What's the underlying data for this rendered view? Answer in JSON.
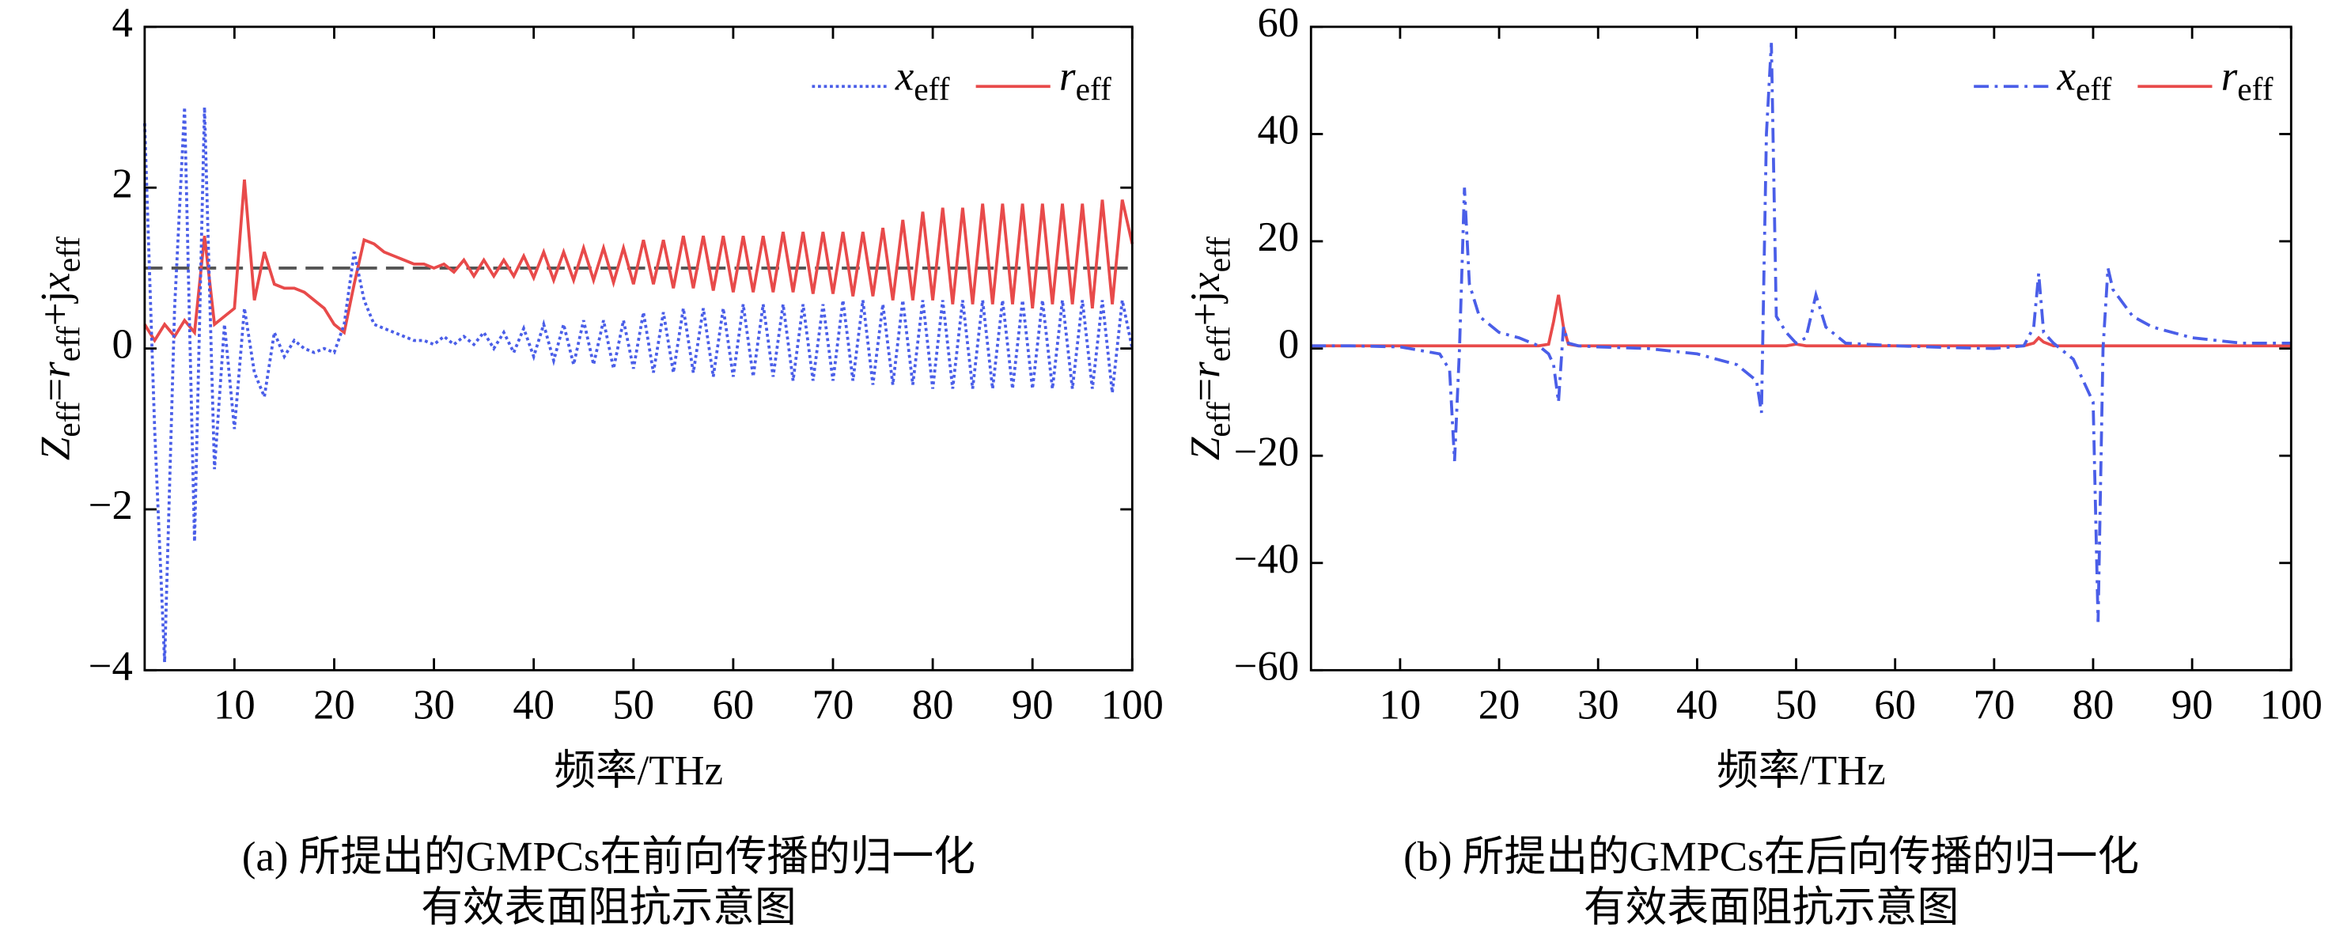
{
  "chart_data": [
    {
      "type": "line",
      "ylabel": [
        "Z",
        "eff",
        "=",
        "r",
        "eff",
        "+j",
        "x",
        "eff"
      ],
      "xlabel": "频率/THz",
      "caption": [
        "(a) 所提出的GMPCs在前向传播的归一化",
        "有效表面阻抗示意图"
      ],
      "xlim": [
        1,
        100
      ],
      "xticks": [
        10,
        20,
        30,
        40,
        50,
        60,
        70,
        80,
        90,
        100
      ],
      "ylim": [
        -4,
        4
      ],
      "yticks": [
        -4,
        -2,
        0,
        2,
        4
      ],
      "hline": 1,
      "x": [
        1,
        2,
        3,
        4,
        5,
        6,
        7,
        8,
        9,
        10,
        11,
        12,
        13,
        14,
        15,
        16,
        17,
        18,
        19,
        20,
        21,
        22,
        23,
        24,
        25,
        26,
        27,
        28,
        29,
        30,
        31,
        32,
        33,
        34,
        35,
        36,
        37,
        38,
        39,
        40,
        41,
        42,
        43,
        44,
        45,
        46,
        47,
        48,
        49,
        50,
        51,
        52,
        53,
        54,
        55,
        56,
        57,
        58,
        59,
        60,
        61,
        62,
        63,
        64,
        65,
        66,
        67,
        68,
        69,
        70,
        71,
        72,
        73,
        74,
        75,
        76,
        77,
        78,
        79,
        80,
        81,
        82,
        83,
        84,
        85,
        86,
        87,
        88,
        89,
        90,
        91,
        92,
        93,
        94,
        95,
        96,
        97,
        98,
        99,
        100
      ],
      "series": [
        {
          "name": [
            "x",
            "eff"
          ],
          "color": "#4a5ee8",
          "style": "dotted",
          "values": [
            2.8,
            -1,
            -3.9,
            0.5,
            3,
            -2.4,
            3,
            -1.5,
            0.3,
            -1,
            0.5,
            -0.3,
            -0.6,
            0.2,
            -0.1,
            0.1,
            0,
            -0.05,
            0,
            -0.05,
            0.3,
            1.2,
            0.6,
            0.3,
            0.25,
            0.2,
            0.15,
            0.1,
            0.1,
            0.05,
            0.15,
            0.05,
            0.15,
            0.05,
            0.2,
            0,
            0.2,
            -0.05,
            0.25,
            -0.1,
            0.3,
            -0.15,
            0.3,
            -0.2,
            0.35,
            -0.2,
            0.35,
            -0.25,
            0.35,
            -0.25,
            0.45,
            -0.3,
            0.45,
            -0.3,
            0.5,
            -0.3,
            0.5,
            -0.35,
            0.5,
            -0.35,
            0.55,
            -0.35,
            0.55,
            -0.35,
            0.55,
            -0.4,
            0.55,
            -0.4,
            0.55,
            -0.4,
            0.6,
            -0.4,
            0.6,
            -0.45,
            0.55,
            -0.45,
            0.6,
            -0.45,
            0.6,
            -0.5,
            0.6,
            -0.5,
            0.6,
            -0.5,
            0.6,
            -0.5,
            0.6,
            -0.5,
            0.6,
            -0.5,
            0.6,
            -0.5,
            0.6,
            -0.5,
            0.6,
            -0.5,
            0.6,
            -0.55,
            0.6,
            0
          ]
        },
        {
          "name": [
            "r",
            "eff"
          ],
          "color": "#e84a4a",
          "style": "solid",
          "values": [
            0.3,
            0.1,
            0.3,
            0.15,
            0.35,
            0.2,
            1.4,
            0.3,
            0.4,
            0.5,
            2.1,
            0.6,
            1.2,
            0.8,
            0.75,
            0.75,
            0.7,
            0.6,
            0.5,
            0.3,
            0.2,
            0.8,
            1.35,
            1.3,
            1.2,
            1.15,
            1.1,
            1.05,
            1.05,
            1.0,
            1.05,
            0.95,
            1.1,
            0.9,
            1.1,
            0.9,
            1.1,
            0.9,
            1.15,
            0.88,
            1.2,
            0.85,
            1.2,
            0.85,
            1.25,
            0.85,
            1.25,
            0.82,
            1.25,
            0.8,
            1.35,
            0.8,
            1.35,
            0.75,
            1.4,
            0.75,
            1.4,
            0.72,
            1.4,
            0.7,
            1.4,
            0.7,
            1.4,
            0.7,
            1.45,
            0.7,
            1.45,
            0.68,
            1.45,
            0.68,
            1.45,
            0.65,
            1.45,
            0.65,
            1.5,
            0.6,
            1.6,
            0.6,
            1.7,
            0.6,
            1.75,
            0.55,
            1.75,
            0.55,
            1.8,
            0.55,
            1.8,
            0.55,
            1.8,
            0.5,
            1.8,
            0.55,
            1.8,
            0.55,
            1.8,
            0.5,
            1.85,
            0.55,
            1.85,
            1.3
          ]
        }
      ]
    },
    {
      "type": "line",
      "ylabel": [
        "Z",
        "eff",
        "=",
        "r",
        "eff",
        "+j",
        "x",
        "eff"
      ],
      "xlabel": "频率/THz",
      "caption": [
        "(b) 所提出的GMPCs在后向传播的归一化",
        "有效表面阻抗示意图"
      ],
      "xlim": [
        1,
        100
      ],
      "xticks": [
        10,
        20,
        30,
        40,
        50,
        60,
        70,
        80,
        90,
        100
      ],
      "ylim": [
        -60,
        60
      ],
      "yticks": [
        -60,
        -40,
        -20,
        0,
        20,
        40,
        60
      ],
      "x": [
        1,
        5,
        10,
        14,
        15,
        15.5,
        16,
        16.5,
        17,
        18,
        20,
        22,
        24,
        25,
        25.5,
        26,
        26.5,
        27,
        28,
        30,
        35,
        40,
        44,
        46,
        46.5,
        47,
        47.5,
        48,
        49,
        50,
        51,
        52,
        53,
        55,
        60,
        65,
        70,
        73,
        74,
        74.5,
        75,
        76,
        78,
        80,
        80.5,
        81,
        81.5,
        82,
        84,
        86,
        90,
        95,
        100
      ],
      "series": [
        {
          "name": [
            "x",
            "eff"
          ],
          "color": "#4a5ee8",
          "style": "dashdot",
          "values": [
            0.5,
            0.5,
            0.3,
            -1,
            -4,
            -21,
            0,
            30,
            12,
            6,
            3,
            2,
            0.5,
            -1,
            -3,
            -10,
            4,
            1,
            0.5,
            0.3,
            0,
            -1,
            -3,
            -6,
            -12,
            40,
            57,
            6,
            3,
            1,
            2,
            10,
            4,
            1,
            0.5,
            0.2,
            0,
            0.5,
            4,
            14,
            3,
            1,
            -2,
            -10,
            -51,
            0,
            15,
            11,
            6,
            4,
            2,
            1,
            1
          ]
        },
        {
          "name": [
            "r",
            "eff"
          ],
          "color": "#e84a4a",
          "style": "solid",
          "values": [
            0.5,
            0.5,
            0.5,
            0.5,
            0.5,
            0.5,
            0.5,
            0.5,
            0.5,
            0.5,
            0.5,
            0.5,
            0.5,
            0.8,
            5,
            10,
            4,
            0.8,
            0.5,
            0.5,
            0.5,
            0.5,
            0.5,
            0.5,
            0.5,
            0.5,
            0.5,
            0.5,
            0.5,
            0.8,
            0.5,
            0.5,
            0.5,
            0.5,
            0.5,
            0.5,
            0.5,
            0.5,
            1,
            2,
            1.2,
            0.5,
            0.5,
            0.5,
            0.5,
            0.5,
            0.5,
            0.5,
            0.5,
            0.5,
            0.5,
            0.5,
            0.5
          ]
        }
      ]
    }
  ]
}
